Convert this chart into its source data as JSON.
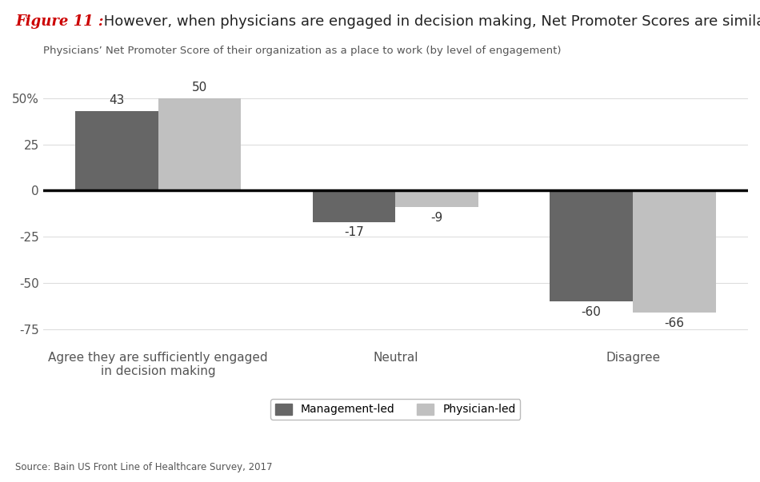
{
  "title_figure": "Figure 11 :",
  "title_text": " However, when physicians are engaged in decision making, Net Promoter Scores are similar",
  "subtitle": "Physicians’ Net Promoter Score of their organization as a place to work (by level of engagement)",
  "categories": [
    "Agree they are sufficiently engaged\nin decision making",
    "Neutral",
    "Disagree"
  ],
  "management_led": [
    43,
    -17,
    -60
  ],
  "physician_led": [
    50,
    -9,
    -66
  ],
  "bar_color_management": "#666666",
  "bar_color_physician": "#c0c0c0",
  "ylim": [
    -85,
    65
  ],
  "yticks": [
    -75,
    -50,
    -25,
    0,
    25,
    50
  ],
  "ytick_labels": [
    "-75",
    "-50",
    "-25",
    "0",
    "25",
    "50%"
  ],
  "source": "Source: Bain US Front Line of Healthcare Survey, 2017",
  "legend_management": "Management-led",
  "legend_physician": "Physician-led",
  "bar_width": 0.35,
  "background_color": "#ffffff"
}
